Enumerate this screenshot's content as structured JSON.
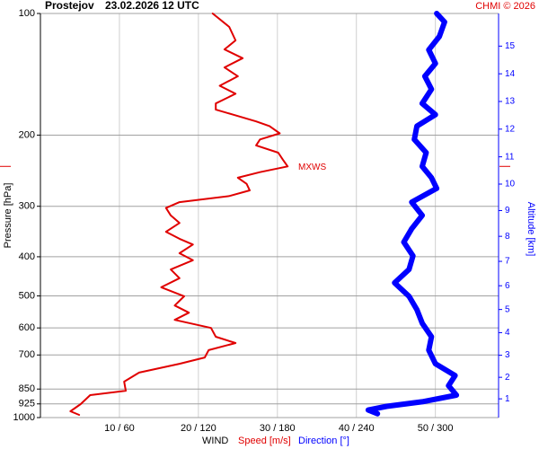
{
  "chart_data": {
    "type": "line",
    "title": "Prostejov",
    "subtitle": "23.02.2026 12 UTC",
    "credit": "CHMI © 2026",
    "y_label": "Pressure [hPa]",
    "y2_label": "Altitude [km]",
    "legend_title": "WIND",
    "y_scale": "log",
    "grid": true,
    "ylim": [
      1000,
      100
    ],
    "yticks": [
      100,
      200,
      300,
      400,
      500,
      600,
      700,
      850,
      925,
      1000
    ],
    "xlim": [
      0,
      58
    ],
    "x2lim": [
      0,
      348
    ],
    "xticks": [
      {
        "value": 10,
        "label": "10 / 60"
      },
      {
        "value": 20,
        "label": "20 / 120"
      },
      {
        "value": 30,
        "label": "30 / 180"
      },
      {
        "value": 40,
        "label": "40 / 240"
      },
      {
        "value": 50,
        "label": "50 / 300"
      }
    ],
    "y2ticks": [
      1,
      2,
      3,
      4,
      5,
      6,
      7,
      8,
      9,
      10,
      11,
      12,
      13,
      14,
      15
    ],
    "annotations": [
      {
        "text": "MXWS",
        "pressure": 239
      }
    ],
    "series": [
      {
        "name": "Speed [m/s]",
        "color": "#e00000",
        "pressure": [
          100,
          108,
          116.6,
          122.7,
          129,
          136,
          143,
          151,
          158,
          167,
          173,
          178,
          185,
          190,
          198,
          205,
          212,
          221,
          230,
          239,
          247,
          255,
          264,
          274,
          283,
          293,
          303,
          316,
          330,
          347,
          361,
          373,
          392,
          408,
          430,
          452,
          476,
          501,
          528,
          550,
          573,
          600,
          631,
          654,
          681,
          710,
          736,
          774,
          815,
          858,
          880,
          926,
          965,
          985
        ],
        "values": [
          21.8,
          23.9,
          24.7,
          23.3,
          25.6,
          23.3,
          25.0,
          22.7,
          24.7,
          22.2,
          22.2,
          24.4,
          27.3,
          29.0,
          30.3,
          27.8,
          27.3,
          30.1,
          30.7,
          31.3,
          27.8,
          25.0,
          26.1,
          26.5,
          23.9,
          17.6,
          15.9,
          16.5,
          17.6,
          15.9,
          17.6,
          19.3,
          17.6,
          19.3,
          16.5,
          17.6,
          15.3,
          18.2,
          17.0,
          18.8,
          17.0,
          21.6,
          22.2,
          24.7,
          21.3,
          20.8,
          17.6,
          12.5,
          10.6,
          10.8,
          6.3,
          5.1,
          3.8,
          4.9
        ]
      },
      {
        "name": "Direction [°]",
        "color": "#0000ff",
        "axis": "x2",
        "pressure": [
          100,
          105,
          114,
          123,
          133,
          143,
          154,
          167,
          178,
          190,
          205,
          221,
          239,
          255,
          271,
          293,
          316,
          341,
          368,
          398,
          430,
          464,
          501,
          541,
          584,
          631,
          681,
          736,
          787,
          834,
          880,
          914,
          938,
          958,
          978
        ],
        "values": [
          301,
          307,
          303,
          295,
          300,
          292,
          297,
          290,
          300,
          286,
          284,
          293,
          290,
          297,
          301,
          282,
          290,
          282,
          276,
          283,
          280,
          269,
          280,
          286,
          290,
          297,
          295,
          300,
          315,
          310,
          316,
          290,
          263,
          249,
          256
        ]
      }
    ]
  }
}
